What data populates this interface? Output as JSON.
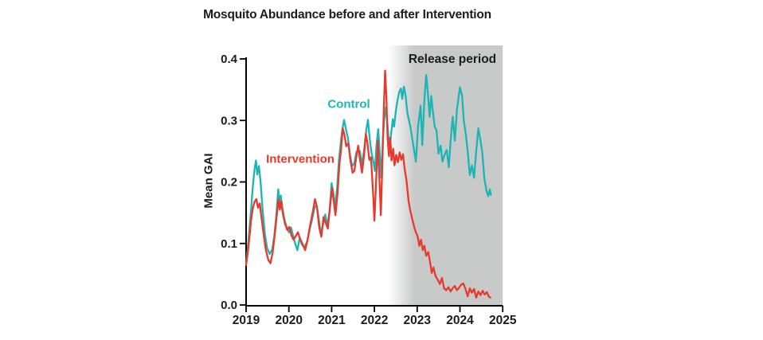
{
  "figure": {
    "title": "Mosquito Abundance before and after Intervention",
    "ylabel": "Mean GAI",
    "release_label": "Release period",
    "control_label": "Control",
    "intervention_label": "Intervention"
  },
  "colors": {
    "control": "#1db4b4",
    "intervention": "#e7392c",
    "band": "#c8caca",
    "axis": "#000000",
    "text": "#1c1c1c"
  },
  "chart_data": {
    "type": "line",
    "title": "Mosquito Abundance before and after Intervention",
    "xlabel": "",
    "ylabel": "Mean GAI",
    "xlim": [
      2019,
      2025
    ],
    "ylim": [
      0,
      0.4
    ],
    "grid": false,
    "x_ticks": [
      2019,
      2020,
      2021,
      2022,
      2023,
      2024,
      2025
    ],
    "x_tick_labels": [
      "2019",
      "2020",
      "2021",
      "2022",
      "2023",
      "2024",
      "2025"
    ],
    "y_ticks": [
      0,
      0.1,
      0.2,
      0.3,
      0.4
    ],
    "y_tick_labels": [
      "0.0",
      "0.1",
      "0.2",
      "0.3",
      "0.4"
    ],
    "release_period": {
      "label": "Release period",
      "fade_start": 2022.31,
      "solid_from": 2022.72,
      "end": 2025
    },
    "annotations": [
      {
        "text": "Control",
        "x": 2021.38,
        "y": 0.327
      },
      {
        "text": "Intervention",
        "x": 2020.25,
        "y": 0.237
      },
      {
        "text": "Release period",
        "x": 2023.82,
        "y": 0.4
      }
    ],
    "series": [
      {
        "name": "Control",
        "color": "#1db4b4",
        "points": [
          [
            2019.0,
            0.068
          ],
          [
            2019.04,
            0.092
          ],
          [
            2019.08,
            0.125
          ],
          [
            2019.12,
            0.158
          ],
          [
            2019.16,
            0.195
          ],
          [
            2019.2,
            0.222
          ],
          [
            2019.23,
            0.235
          ],
          [
            2019.26,
            0.212
          ],
          [
            2019.3,
            0.226
          ],
          [
            2019.34,
            0.198
          ],
          [
            2019.39,
            0.152
          ],
          [
            2019.44,
            0.115
          ],
          [
            2019.49,
            0.093
          ],
          [
            2019.55,
            0.083
          ],
          [
            2019.61,
            0.09
          ],
          [
            2019.66,
            0.112
          ],
          [
            2019.71,
            0.148
          ],
          [
            2019.75,
            0.188
          ],
          [
            2019.78,
            0.168
          ],
          [
            2019.81,
            0.178
          ],
          [
            2019.85,
            0.158
          ],
          [
            2019.9,
            0.138
          ],
          [
            2019.95,
            0.126
          ],
          [
            2020.0,
            0.118
          ],
          [
            2020.05,
            0.126
          ],
          [
            2020.1,
            0.112
          ],
          [
            2020.15,
            0.099
          ],
          [
            2020.2,
            0.089
          ],
          [
            2020.25,
            0.108
          ],
          [
            2020.3,
            0.099
          ],
          [
            2020.36,
            0.093
          ],
          [
            2020.42,
            0.102
          ],
          [
            2020.48,
            0.121
          ],
          [
            2020.54,
            0.138
          ],
          [
            2020.6,
            0.158
          ],
          [
            2020.65,
            0.162
          ],
          [
            2020.7,
            0.139
          ],
          [
            2020.75,
            0.115
          ],
          [
            2020.8,
            0.131
          ],
          [
            2020.85,
            0.147
          ],
          [
            2020.9,
            0.129
          ],
          [
            2020.95,
            0.152
          ],
          [
            2021.0,
            0.198
          ],
          [
            2021.04,
            0.182
          ],
          [
            2021.08,
            0.158
          ],
          [
            2021.13,
            0.192
          ],
          [
            2021.17,
            0.235
          ],
          [
            2021.21,
            0.262
          ],
          [
            2021.25,
            0.285
          ],
          [
            2021.29,
            0.301
          ],
          [
            2021.33,
            0.287
          ],
          [
            2021.38,
            0.272
          ],
          [
            2021.43,
            0.243
          ],
          [
            2021.48,
            0.226
          ],
          [
            2021.53,
            0.23
          ],
          [
            2021.58,
            0.248
          ],
          [
            2021.62,
            0.252
          ],
          [
            2021.66,
            0.25
          ],
          [
            2021.71,
            0.228
          ],
          [
            2021.76,
            0.252
          ],
          [
            2021.81,
            0.285
          ],
          [
            2021.85,
            0.301
          ],
          [
            2021.89,
            0.27
          ],
          [
            2021.93,
            0.248
          ],
          [
            2021.97,
            0.235
          ],
          [
            2022.01,
            0.218
          ],
          [
            2022.05,
            0.262
          ],
          [
            2022.09,
            0.286
          ],
          [
            2022.13,
            0.242
          ],
          [
            2022.16,
            0.207
          ],
          [
            2022.2,
            0.272
          ],
          [
            2022.23,
            0.302
          ],
          [
            2022.27,
            0.322
          ],
          [
            2022.31,
            0.29
          ],
          [
            2022.35,
            0.253
          ],
          [
            2022.39,
            0.277
          ],
          [
            2022.43,
            0.302
          ],
          [
            2022.46,
            0.29
          ],
          [
            2022.5,
            0.315
          ],
          [
            2022.54,
            0.333
          ],
          [
            2022.58,
            0.346
          ],
          [
            2022.62,
            0.352
          ],
          [
            2022.65,
            0.335
          ],
          [
            2022.69,
            0.355
          ],
          [
            2022.73,
            0.34
          ],
          [
            2022.77,
            0.313
          ],
          [
            2022.84,
            0.29
          ],
          [
            2022.89,
            0.268
          ],
          [
            2022.97,
            0.233
          ],
          [
            2023.02,
            0.29
          ],
          [
            2023.08,
            0.324
          ],
          [
            2023.12,
            0.26
          ],
          [
            2023.17,
            0.335
          ],
          [
            2023.21,
            0.374
          ],
          [
            2023.25,
            0.345
          ],
          [
            2023.29,
            0.306
          ],
          [
            2023.33,
            0.34
          ],
          [
            2023.37,
            0.312
          ],
          [
            2023.41,
            0.29
          ],
          [
            2023.45,
            0.284
          ],
          [
            2023.5,
            0.246
          ],
          [
            2023.55,
            0.259
          ],
          [
            2023.59,
            0.233
          ],
          [
            2023.64,
            0.244
          ],
          [
            2023.69,
            0.252
          ],
          [
            2023.74,
            0.224
          ],
          [
            2023.78,
            0.265
          ],
          [
            2023.83,
            0.306
          ],
          [
            2023.88,
            0.267
          ],
          [
            2023.93,
            0.317
          ],
          [
            2024.0,
            0.354
          ],
          [
            2024.05,
            0.34
          ],
          [
            2024.09,
            0.3
          ],
          [
            2024.14,
            0.276
          ],
          [
            2024.18,
            0.25
          ],
          [
            2024.23,
            0.211
          ],
          [
            2024.28,
            0.227
          ],
          [
            2024.33,
            0.207
          ],
          [
            2024.38,
            0.25
          ],
          [
            2024.43,
            0.287
          ],
          [
            2024.48,
            0.267
          ],
          [
            2024.52,
            0.25
          ],
          [
            2024.57,
            0.207
          ],
          [
            2024.62,
            0.186
          ],
          [
            2024.66,
            0.177
          ],
          [
            2024.7,
            0.188
          ],
          [
            2024.72,
            0.179
          ]
        ]
      },
      {
        "name": "Intervention",
        "color": "#e7392c",
        "points": [
          [
            2019.0,
            0.065
          ],
          [
            2019.04,
            0.085
          ],
          [
            2019.08,
            0.112
          ],
          [
            2019.12,
            0.14
          ],
          [
            2019.16,
            0.158
          ],
          [
            2019.2,
            0.168
          ],
          [
            2019.24,
            0.172
          ],
          [
            2019.28,
            0.158
          ],
          [
            2019.32,
            0.165
          ],
          [
            2019.36,
            0.142
          ],
          [
            2019.41,
            0.115
          ],
          [
            2019.46,
            0.09
          ],
          [
            2019.52,
            0.073
          ],
          [
            2019.57,
            0.068
          ],
          [
            2019.62,
            0.085
          ],
          [
            2019.67,
            0.115
          ],
          [
            2019.72,
            0.148
          ],
          [
            2019.76,
            0.172
          ],
          [
            2019.79,
            0.155
          ],
          [
            2019.82,
            0.168
          ],
          [
            2019.86,
            0.148
          ],
          [
            2019.91,
            0.132
          ],
          [
            2019.96,
            0.122
          ],
          [
            2020.01,
            0.127
          ],
          [
            2020.06,
            0.113
          ],
          [
            2020.11,
            0.106
          ],
          [
            2020.16,
            0.112
          ],
          [
            2020.21,
            0.118
          ],
          [
            2020.26,
            0.108
          ],
          [
            2020.32,
            0.099
          ],
          [
            2020.38,
            0.089
          ],
          [
            2020.44,
            0.106
          ],
          [
            2020.5,
            0.131
          ],
          [
            2020.56,
            0.152
          ],
          [
            2020.61,
            0.172
          ],
          [
            2020.66,
            0.158
          ],
          [
            2020.71,
            0.126
          ],
          [
            2020.76,
            0.111
          ],
          [
            2020.81,
            0.143
          ],
          [
            2020.86,
            0.134
          ],
          [
            2020.91,
            0.124
          ],
          [
            2020.96,
            0.158
          ],
          [
            2021.01,
            0.19
          ],
          [
            2021.05,
            0.168
          ],
          [
            2021.09,
            0.146
          ],
          [
            2021.14,
            0.183
          ],
          [
            2021.18,
            0.228
          ],
          [
            2021.22,
            0.252
          ],
          [
            2021.26,
            0.287
          ],
          [
            2021.3,
            0.277
          ],
          [
            2021.34,
            0.258
          ],
          [
            2021.39,
            0.263
          ],
          [
            2021.44,
            0.235
          ],
          [
            2021.49,
            0.215
          ],
          [
            2021.53,
            0.218
          ],
          [
            2021.58,
            0.242
          ],
          [
            2021.62,
            0.259
          ],
          [
            2021.66,
            0.238
          ],
          [
            2021.71,
            0.215
          ],
          [
            2021.76,
            0.245
          ],
          [
            2021.8,
            0.278
          ],
          [
            2021.84,
            0.262
          ],
          [
            2021.88,
            0.236
          ],
          [
            2021.92,
            0.24
          ],
          [
            2021.97,
            0.18
          ],
          [
            2022.0,
            0.137
          ],
          [
            2022.04,
            0.2
          ],
          [
            2022.08,
            0.267
          ],
          [
            2022.12,
            0.2
          ],
          [
            2022.15,
            0.146
          ],
          [
            2022.19,
            0.24
          ],
          [
            2022.22,
            0.32
          ],
          [
            2022.25,
            0.381
          ],
          [
            2022.28,
            0.34
          ],
          [
            2022.31,
            0.27
          ],
          [
            2022.34,
            0.242
          ],
          [
            2022.37,
            0.272
          ],
          [
            2022.4,
            0.235
          ],
          [
            2022.44,
            0.254
          ],
          [
            2022.47,
            0.227
          ],
          [
            2022.51,
            0.244
          ],
          [
            2022.55,
            0.232
          ],
          [
            2022.59,
            0.248
          ],
          [
            2022.63,
            0.236
          ],
          [
            2022.67,
            0.245
          ],
          [
            2022.7,
            0.225
          ],
          [
            2022.75,
            0.202
          ],
          [
            2022.8,
            0.168
          ],
          [
            2022.84,
            0.153
          ],
          [
            2022.89,
            0.138
          ],
          [
            2022.93,
            0.127
          ],
          [
            2022.97,
            0.118
          ],
          [
            2023.01,
            0.112
          ],
          [
            2023.05,
            0.096
          ],
          [
            2023.09,
            0.106
          ],
          [
            2023.13,
            0.089
          ],
          [
            2023.17,
            0.096
          ],
          [
            2023.21,
            0.08
          ],
          [
            2023.26,
            0.086
          ],
          [
            2023.3,
            0.07
          ],
          [
            2023.34,
            0.052
          ],
          [
            2023.38,
            0.061
          ],
          [
            2023.43,
            0.047
          ],
          [
            2023.48,
            0.041
          ],
          [
            2023.53,
            0.034
          ],
          [
            2023.58,
            0.044
          ],
          [
            2023.63,
            0.027
          ],
          [
            2023.68,
            0.024
          ],
          [
            2023.73,
            0.029
          ],
          [
            2023.78,
            0.022
          ],
          [
            2023.83,
            0.027
          ],
          [
            2023.88,
            0.031
          ],
          [
            2023.93,
            0.024
          ],
          [
            2023.98,
            0.028
          ],
          [
            2024.03,
            0.033
          ],
          [
            2024.08,
            0.035
          ],
          [
            2024.13,
            0.026
          ],
          [
            2024.18,
            0.014
          ],
          [
            2024.23,
            0.027
          ],
          [
            2024.28,
            0.02
          ],
          [
            2024.33,
            0.026
          ],
          [
            2024.38,
            0.012
          ],
          [
            2024.43,
            0.022
          ],
          [
            2024.48,
            0.016
          ],
          [
            2024.53,
            0.023
          ],
          [
            2024.58,
            0.017
          ],
          [
            2024.63,
            0.021
          ],
          [
            2024.67,
            0.014
          ],
          [
            2024.71,
            0.012
          ]
        ]
      }
    ]
  }
}
